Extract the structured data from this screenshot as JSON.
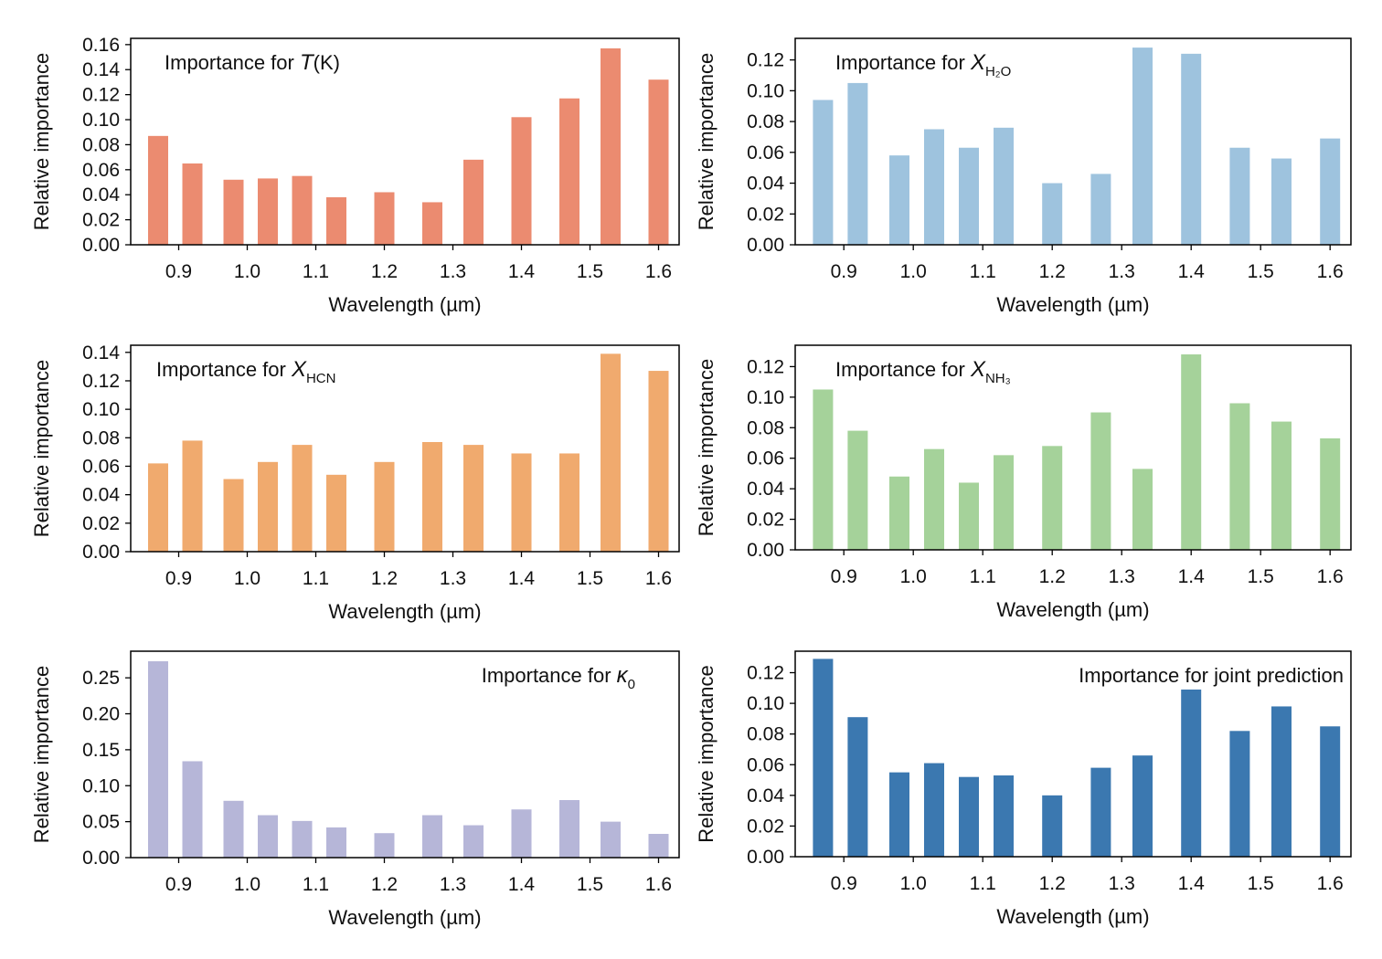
{
  "figure": {
    "xlabel": "Wavelength (µm)",
    "ylabel": "Relative importance"
  },
  "chart_data": [
    {
      "type": "bar",
      "title": {
        "prefix": "Importance for ",
        "symbol": "T",
        "subscript": "",
        "suffix": "(K)"
      },
      "xlabel": "Wavelength (µm)",
      "ylabel": "Relative importance",
      "color": "#EB8B70",
      "x": [
        0.87,
        0.92,
        0.98,
        1.03,
        1.08,
        1.13,
        1.2,
        1.27,
        1.33,
        1.4,
        1.47,
        1.53,
        1.6
      ],
      "values": [
        0.087,
        0.065,
        0.052,
        0.053,
        0.055,
        0.038,
        0.042,
        0.034,
        0.068,
        0.102,
        0.117,
        0.157,
        0.132
      ],
      "xlim": [
        0.83,
        1.63
      ],
      "ylim": [
        0,
        0.165
      ],
      "xticks": [
        0.9,
        1.0,
        1.1,
        1.2,
        1.3,
        1.4,
        1.5,
        1.6
      ],
      "xtick_labels": [
        "0.9",
        "1.0",
        "1.1",
        "1.2",
        "1.3",
        "1.4",
        "1.5",
        "1.6"
      ],
      "yticks": [
        0,
        0.02,
        0.04,
        0.06,
        0.08,
        0.1,
        0.12,
        0.14,
        0.16
      ],
      "ytick_labels": [
        "0.00",
        "0.02",
        "0.04",
        "0.06",
        "0.08",
        "0.10",
        "0.12",
        "0.14",
        "0.16"
      ],
      "title_position": "top-left",
      "grid": false
    },
    {
      "type": "bar",
      "title": {
        "prefix": "Importance for ",
        "symbol": "X",
        "subscript": "H₂O",
        "suffix": ""
      },
      "xlabel": "Wavelength (µm)",
      "ylabel": "Relative importance",
      "color": "#9EC3DE",
      "x": [
        0.87,
        0.92,
        0.98,
        1.03,
        1.08,
        1.13,
        1.2,
        1.27,
        1.33,
        1.4,
        1.47,
        1.53,
        1.6
      ],
      "values": [
        0.094,
        0.105,
        0.058,
        0.075,
        0.063,
        0.076,
        0.04,
        0.046,
        0.128,
        0.124,
        0.063,
        0.056,
        0.069
      ],
      "xlim": [
        0.83,
        1.63
      ],
      "ylim": [
        0,
        0.134
      ],
      "xticks": [
        0.9,
        1.0,
        1.1,
        1.2,
        1.3,
        1.4,
        1.5,
        1.6
      ],
      "xtick_labels": [
        "0.9",
        "1.0",
        "1.1",
        "1.2",
        "1.3",
        "1.4",
        "1.5",
        "1.6"
      ],
      "yticks": [
        0,
        0.02,
        0.04,
        0.06,
        0.08,
        0.1,
        0.12
      ],
      "ytick_labels": [
        "0.00",
        "0.02",
        "0.04",
        "0.06",
        "0.08",
        "0.10",
        "0.12"
      ],
      "title_position": "top-left",
      "grid": false
    },
    {
      "type": "bar",
      "title": {
        "prefix": "Importance for ",
        "symbol": "X",
        "subscript": "HCN",
        "suffix": ""
      },
      "xlabel": "Wavelength (µm)",
      "ylabel": "Relative importance",
      "color": "#F0AA6E",
      "x": [
        0.87,
        0.92,
        0.98,
        1.03,
        1.08,
        1.13,
        1.2,
        1.27,
        1.33,
        1.4,
        1.47,
        1.53,
        1.6
      ],
      "values": [
        0.062,
        0.078,
        0.051,
        0.063,
        0.075,
        0.054,
        0.063,
        0.077,
        0.075,
        0.069,
        0.069,
        0.139,
        0.127
      ],
      "xlim": [
        0.83,
        1.63
      ],
      "ylim": [
        0,
        0.145
      ],
      "xticks": [
        0.9,
        1.0,
        1.1,
        1.2,
        1.3,
        1.4,
        1.5,
        1.6
      ],
      "xtick_labels": [
        "0.9",
        "1.0",
        "1.1",
        "1.2",
        "1.3",
        "1.4",
        "1.5",
        "1.6"
      ],
      "yticks": [
        0,
        0.02,
        0.04,
        0.06,
        0.08,
        0.1,
        0.12,
        0.14
      ],
      "ytick_labels": [
        "0.00",
        "0.02",
        "0.04",
        "0.06",
        "0.08",
        "0.10",
        "0.12",
        "0.14"
      ],
      "title_position": "top-left",
      "grid": false
    },
    {
      "type": "bar",
      "title": {
        "prefix": "Importance for ",
        "symbol": "X",
        "subscript": "NH₃",
        "suffix": ""
      },
      "xlabel": "Wavelength (µm)",
      "ylabel": "Relative importance",
      "color": "#A5D29A",
      "x": [
        0.87,
        0.92,
        0.98,
        1.03,
        1.08,
        1.13,
        1.2,
        1.27,
        1.33,
        1.4,
        1.47,
        1.53,
        1.6
      ],
      "values": [
        0.105,
        0.078,
        0.048,
        0.066,
        0.044,
        0.062,
        0.068,
        0.09,
        0.053,
        0.128,
        0.096,
        0.084,
        0.073
      ],
      "xlim": [
        0.83,
        1.63
      ],
      "ylim": [
        0,
        0.134
      ],
      "xticks": [
        0.9,
        1.0,
        1.1,
        1.2,
        1.3,
        1.4,
        1.5,
        1.6
      ],
      "xtick_labels": [
        "0.9",
        "1.0",
        "1.1",
        "1.2",
        "1.3",
        "1.4",
        "1.5",
        "1.6"
      ],
      "yticks": [
        0,
        0.02,
        0.04,
        0.06,
        0.08,
        0.1,
        0.12
      ],
      "ytick_labels": [
        "0.00",
        "0.02",
        "0.04",
        "0.06",
        "0.08",
        "0.10",
        "0.12"
      ],
      "title_position": "top-left",
      "grid": false
    },
    {
      "type": "bar",
      "title": {
        "prefix": "Importance for ",
        "symbol": "κ",
        "subscript": "0",
        "suffix": ""
      },
      "xlabel": "Wavelength (µm)",
      "ylabel": "Relative importance",
      "color": "#B6B6D8",
      "x": [
        0.87,
        0.92,
        0.98,
        1.03,
        1.08,
        1.13,
        1.2,
        1.27,
        1.33,
        1.4,
        1.47,
        1.53,
        1.6
      ],
      "values": [
        0.273,
        0.134,
        0.079,
        0.059,
        0.051,
        0.042,
        0.034,
        0.059,
        0.045,
        0.067,
        0.08,
        0.05,
        0.033
      ],
      "xlim": [
        0.83,
        1.63
      ],
      "ylim": [
        0,
        0.287
      ],
      "xticks": [
        0.9,
        1.0,
        1.1,
        1.2,
        1.3,
        1.4,
        1.5,
        1.6
      ],
      "xtick_labels": [
        "0.9",
        "1.0",
        "1.1",
        "1.2",
        "1.3",
        "1.4",
        "1.5",
        "1.6"
      ],
      "yticks": [
        0,
        0.05,
        0.1,
        0.15,
        0.2,
        0.25
      ],
      "ytick_labels": [
        "0.00",
        "0.05",
        "0.10",
        "0.15",
        "0.20",
        "0.25"
      ],
      "title_position": "top-right",
      "grid": false
    },
    {
      "type": "bar",
      "title": {
        "prefix": "Importance for joint prediction",
        "symbol": "",
        "subscript": "",
        "suffix": ""
      },
      "xlabel": "Wavelength (µm)",
      "ylabel": "Relative importance",
      "color": "#3B78B0",
      "x": [
        0.87,
        0.92,
        0.98,
        1.03,
        1.08,
        1.13,
        1.2,
        1.27,
        1.33,
        1.4,
        1.47,
        1.53,
        1.6
      ],
      "values": [
        0.129,
        0.091,
        0.055,
        0.061,
        0.052,
        0.053,
        0.04,
        0.058,
        0.066,
        0.109,
        0.082,
        0.098,
        0.085
      ],
      "xlim": [
        0.83,
        1.63
      ],
      "ylim": [
        0,
        0.134
      ],
      "xticks": [
        0.9,
        1.0,
        1.1,
        1.2,
        1.3,
        1.4,
        1.5,
        1.6
      ],
      "xtick_labels": [
        "0.9",
        "1.0",
        "1.1",
        "1.2",
        "1.3",
        "1.4",
        "1.5",
        "1.6"
      ],
      "yticks": [
        0,
        0.02,
        0.04,
        0.06,
        0.08,
        0.1,
        0.12
      ],
      "ytick_labels": [
        "0.00",
        "0.02",
        "0.04",
        "0.06",
        "0.08",
        "0.10",
        "0.12"
      ],
      "title_position": "top-right",
      "grid": false
    }
  ]
}
